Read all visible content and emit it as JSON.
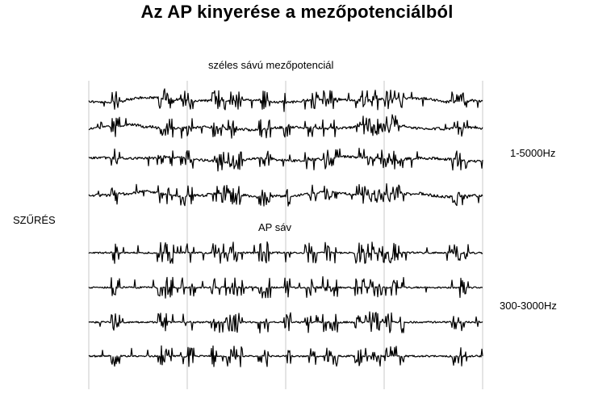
{
  "title": "Az AP kinyerése a mezőpotenciálból",
  "labels": {
    "wideband": "széles sávú mezőpotenciál",
    "ap_band": "AP sáv",
    "filtering": "SZŰRÉS",
    "band_wide": "1-5000Hz",
    "band_ap": "300-3000Hz"
  },
  "traces": {
    "wideband_channels": 4,
    "ap_channels": 4,
    "stroke_color": "#000000",
    "grid_color": "#c8c8c8"
  }
}
